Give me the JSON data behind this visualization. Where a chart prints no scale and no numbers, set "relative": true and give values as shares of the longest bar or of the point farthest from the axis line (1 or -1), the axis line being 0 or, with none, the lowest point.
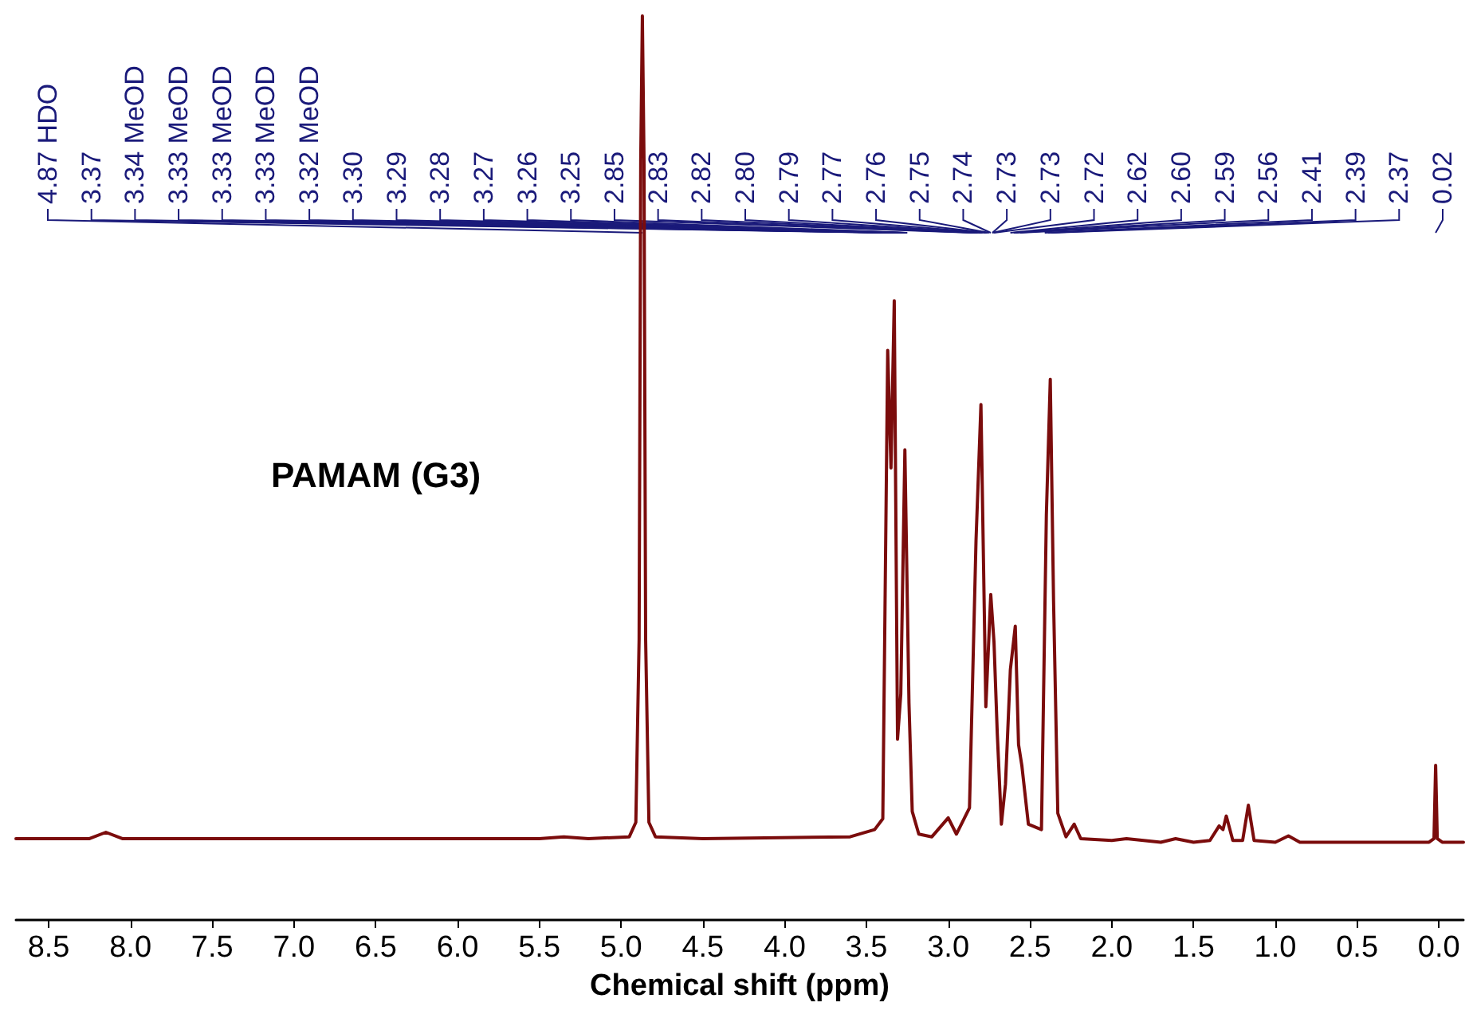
{
  "chart_data": {
    "type": "line",
    "title": "PAMAM (G3)",
    "xlabel": "Chemical shift (ppm)",
    "relative": true,
    "grid": false,
    "marker": "none",
    "line_style": "solid",
    "xlim": [
      8.7,
      -0.15
    ],
    "xticks": [
      8.5,
      {
        "value": 8,
        "label": "8.0"
      },
      7.5,
      {
        "value": 7,
        "label": "7.0"
      },
      6.5,
      {
        "value": 6,
        "label": "6.0"
      },
      5.5,
      {
        "value": 5,
        "label": "5.0"
      },
      4.5,
      {
        "value": 4,
        "label": "4.0"
      },
      3.5,
      {
        "value": 3,
        "label": "3.0"
      },
      2.5,
      {
        "value": 2,
        "label": "2.0"
      },
      1.5,
      {
        "value": 1,
        "label": "1.0"
      },
      0.5,
      {
        "value": 0,
        "label": "0.0"
      }
    ],
    "annotations": [
      {
        "text": "4.87 HDO",
        "x": 4.87
      },
      {
        "text": "3.37",
        "x": 3.37
      },
      {
        "text": "3.34 MeOD",
        "x": 3.34
      },
      {
        "text": "3.33 MeOD",
        "x": 3.33
      },
      {
        "text": "3.33 MeOD",
        "x": 3.33
      },
      {
        "text": "3.33 MeOD",
        "x": 3.33
      },
      {
        "text": "3.32 MeOD",
        "x": 3.32
      },
      {
        "text": "3.30",
        "x": 3.3
      },
      {
        "text": "3.29",
        "x": 3.29
      },
      {
        "text": "3.28",
        "x": 3.28
      },
      {
        "text": "3.27",
        "x": 3.27
      },
      {
        "text": "3.26",
        "x": 3.26
      },
      {
        "text": "3.25",
        "x": 3.25
      },
      {
        "text": "2.85",
        "x": 2.85
      },
      {
        "text": "2.83",
        "x": 2.83
      },
      {
        "text": "2.82",
        "x": 2.82
      },
      {
        "text": "2.80",
        "x": 2.8
      },
      {
        "text": "2.79",
        "x": 2.79
      },
      {
        "text": "2.77",
        "x": 2.77
      },
      {
        "text": "2.76",
        "x": 2.76
      },
      {
        "text": "2.75",
        "x": 2.75
      },
      {
        "text": "2.74",
        "x": 2.74
      },
      {
        "text": "2.73",
        "x": 2.73
      },
      {
        "text": "2.73",
        "x": 2.73
      },
      {
        "text": "2.72",
        "x": 2.72
      },
      {
        "text": "2.62",
        "x": 2.62
      },
      {
        "text": "2.60",
        "x": 2.6
      },
      {
        "text": "2.59",
        "x": 2.59
      },
      {
        "text": "2.56",
        "x": 2.56
      },
      {
        "text": "2.41",
        "x": 2.41
      },
      {
        "text": "2.39",
        "x": 2.39
      },
      {
        "text": "2.37",
        "x": 2.37
      },
      {
        "text": "0.02",
        "x": 0.02
      }
    ],
    "series": [
      {
        "color": "#7b0c0c",
        "x": [
          8.7,
          8.25,
          8.15,
          8.05,
          7.5,
          6.5,
          5.5,
          5.35,
          5.2,
          4.95,
          4.91,
          4.89,
          4.88,
          4.87,
          4.86,
          4.85,
          4.83,
          4.79,
          4.5,
          3.6,
          3.45,
          3.4,
          3.37,
          3.35,
          3.33,
          3.31,
          3.29,
          3.265,
          3.24,
          3.22,
          3.18,
          3.1,
          3.0,
          2.95,
          2.87,
          2.83,
          2.8,
          2.77,
          2.74,
          2.72,
          2.7,
          2.675,
          2.65,
          2.62,
          2.59,
          2.57,
          2.55,
          2.51,
          2.43,
          2.4,
          2.376,
          2.356,
          2.33,
          2.28,
          2.23,
          2.19,
          2.0,
          1.91,
          1.7,
          1.61,
          1.5,
          1.4,
          1.344,
          1.32,
          1.3,
          1.26,
          1.2,
          1.165,
          1.13,
          1.0,
          0.92,
          0.85,
          0.5,
          0.06,
          0.03,
          0.02,
          0.01,
          -0.02,
          -0.15
        ],
        "values": [
          0.09,
          0.09,
          0.097,
          0.09,
          0.09,
          0.09,
          0.09,
          0.092,
          0.09,
          0.092,
          0.108,
          0.31,
          0.84,
          1.0,
          0.84,
          0.31,
          0.108,
          0.092,
          0.09,
          0.092,
          0.1,
          0.112,
          0.63,
          0.5,
          0.685,
          0.2,
          0.25,
          0.52,
          0.24,
          0.12,
          0.095,
          0.092,
          0.113,
          0.095,
          0.124,
          0.42,
          0.57,
          0.236,
          0.36,
          0.307,
          0.206,
          0.106,
          0.15,
          0.277,
          0.325,
          0.194,
          0.171,
          0.106,
          0.1,
          0.448,
          0.598,
          0.353,
          0.118,
          0.092,
          0.106,
          0.09,
          0.088,
          0.09,
          0.086,
          0.09,
          0.086,
          0.088,
          0.104,
          0.1,
          0.115,
          0.088,
          0.088,
          0.127,
          0.088,
          0.086,
          0.093,
          0.086,
          0.086,
          0.086,
          0.09,
          0.171,
          0.09,
          0.086,
          0.086
        ]
      }
    ]
  }
}
